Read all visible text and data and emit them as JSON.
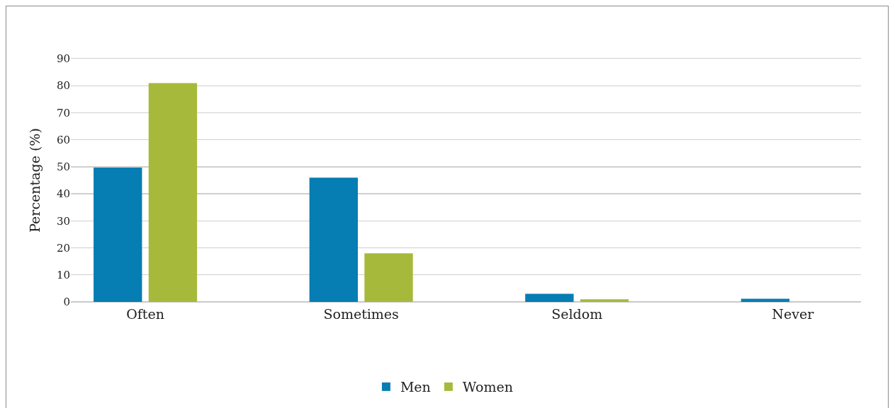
{
  "chart_data": {
    "type": "bar",
    "ylabel": "Percentage (%)",
    "categories": [
      "Often",
      "Sometimes",
      "Seldom",
      "Never"
    ],
    "series": [
      {
        "name": "Men",
        "color": "#067db3",
        "values": [
          49.7,
          46,
          3,
          1.2
        ]
      },
      {
        "name": "Women",
        "color": "#a7b93a",
        "values": [
          81,
          18,
          1,
          0
        ]
      }
    ],
    "ylim": [
      0,
      90
    ],
    "yticks": [
      0,
      10,
      20,
      30,
      40,
      50,
      60,
      70,
      80,
      90
    ],
    "grid": "y",
    "legend": "bottom"
  }
}
